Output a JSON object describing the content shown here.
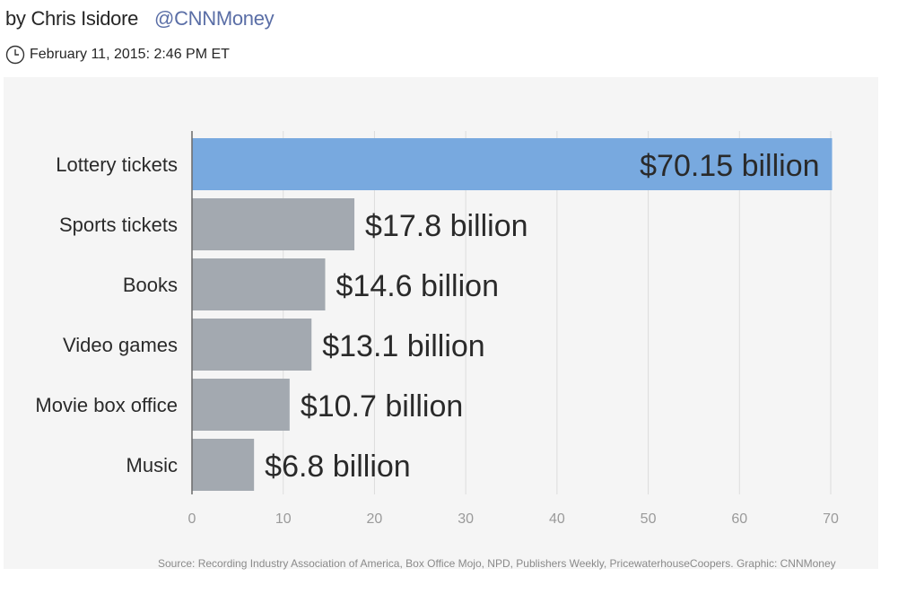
{
  "byline": {
    "author": "by Chris Isidore",
    "handle": "@CNNMoney"
  },
  "dateline": {
    "icon": "clock-icon",
    "text": "February 11, 2015: 2:46 PM ET"
  },
  "colors": {
    "highlight_bar": "#78a9df",
    "bar": "#a3a9b0",
    "background": "#f5f5f5",
    "gridline": "#dcdcdc",
    "handle": "#5a6ea6"
  },
  "chart_data": {
    "type": "bar",
    "orientation": "horizontal",
    "categories": [
      "Lottery tickets",
      "Sports tickets",
      "Books",
      "Video games",
      "Movie box office",
      "Music"
    ],
    "values": [
      70.15,
      17.8,
      14.6,
      13.1,
      10.7,
      6.8
    ],
    "value_labels": [
      "$70.15 billion",
      "$17.8 billion",
      "$14.6 billion",
      "$13.1 billion",
      "$10.7 billion",
      "$6.8 billion"
    ],
    "highlight_index": 0,
    "xlim": [
      0,
      70
    ],
    "xticks": [
      0,
      10,
      20,
      30,
      40,
      50,
      60,
      70
    ],
    "grid": true,
    "title": "",
    "xlabel": "",
    "ylabel": ""
  },
  "source": "Source: Recording Industry Association of America, Box Office Mojo, NPD, Publishers Weekly, PricewaterhouseCoopers. Graphic: CNNMoney"
}
